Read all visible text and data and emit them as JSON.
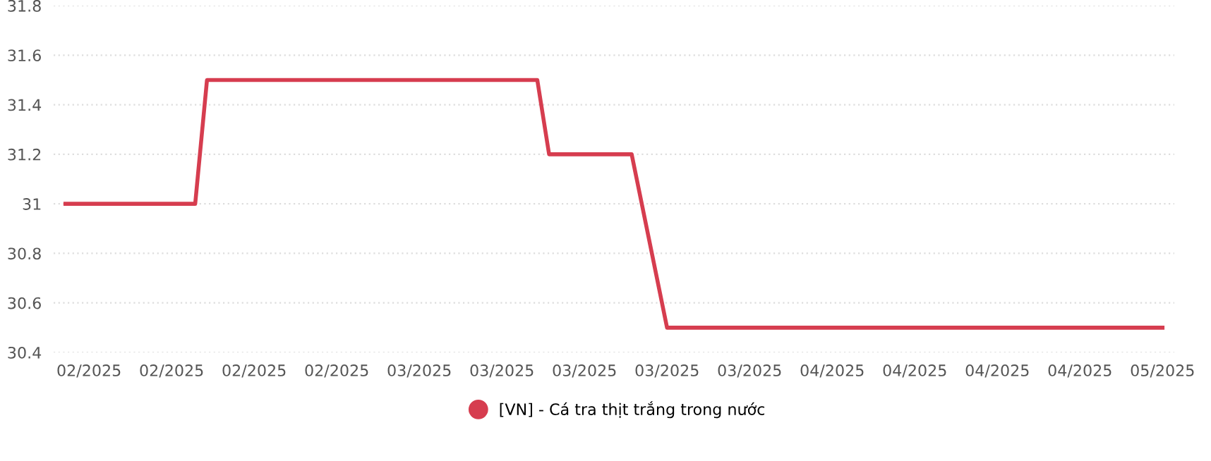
{
  "chart_data": {
    "type": "line",
    "x": [
      "2025-02-01",
      "2025-02-12",
      "2025-02-13",
      "2025-03-13",
      "2025-03-14",
      "2025-03-21",
      "2025-03-24",
      "2025-05-05"
    ],
    "series": [
      {
        "name": "[VN] - Cá tra thịt trắng trong nước",
        "color": "#d63d4f",
        "values": [
          31,
          31,
          31.5,
          31.5,
          31.2,
          31.2,
          30.5,
          30.5
        ]
      }
    ],
    "xlim": [
      "2025-01-31",
      "2025-05-06"
    ],
    "xticks": [
      {
        "value": "2025-02-03",
        "label": "02/2025"
      },
      {
        "value": "2025-02-10",
        "label": "02/2025"
      },
      {
        "value": "2025-02-17",
        "label": "02/2025"
      },
      {
        "value": "2025-02-24",
        "label": "02/2025"
      },
      {
        "value": "2025-03-03",
        "label": "03/2025"
      },
      {
        "value": "2025-03-10",
        "label": "03/2025"
      },
      {
        "value": "2025-03-17",
        "label": "03/2025"
      },
      {
        "value": "2025-03-24",
        "label": "03/2025"
      },
      {
        "value": "2025-03-31",
        "label": "03/2025"
      },
      {
        "value": "2025-04-07",
        "label": "04/2025"
      },
      {
        "value": "2025-04-14",
        "label": "04/2025"
      },
      {
        "value": "2025-04-21",
        "label": "04/2025"
      },
      {
        "value": "2025-04-28",
        "label": "04/2025"
      },
      {
        "value": "2025-05-05",
        "label": "05/2025"
      }
    ],
    "ylim": [
      30.4,
      31.8
    ],
    "yticks": [
      30.4,
      30.6,
      30.8,
      31,
      31.2,
      31.4,
      31.6,
      31.8
    ],
    "grid": "y",
    "legend": "bottom",
    "marker": "none",
    "line_style": "solid"
  }
}
